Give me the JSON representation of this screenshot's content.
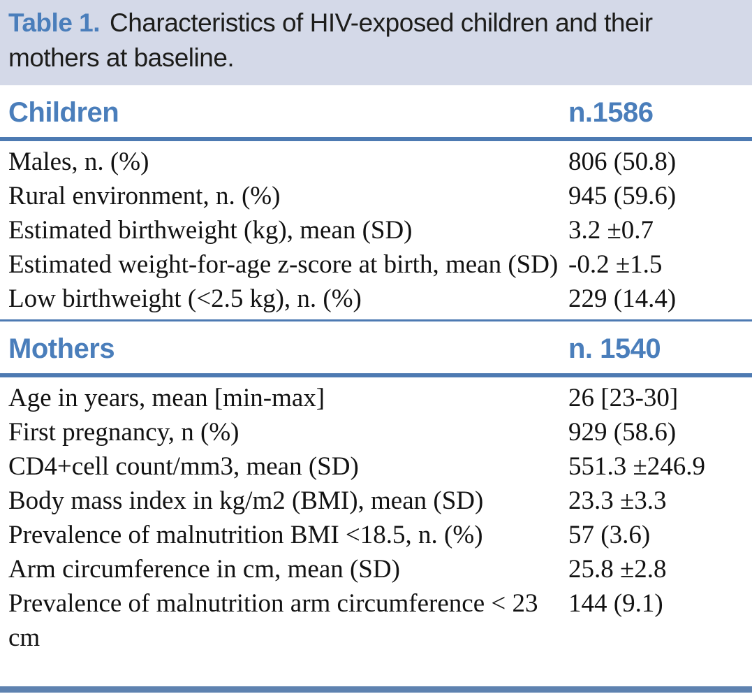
{
  "caption": {
    "label": "Table 1.",
    "text": "Characteristics of HIV-exposed children and their mothers at baseline."
  },
  "colors": {
    "caption_band_background": "#d4d9e8",
    "accent_blue": "#4a7ebb",
    "rule_blue": "#4d7ab2",
    "bottom_bar_blue": "#5e82b0",
    "body_text": "#121212"
  },
  "sections": [
    {
      "header": "Children",
      "count": "n.1586",
      "rows": [
        {
          "label": "Males, n. (%)",
          "value": "806 (50.8)"
        },
        {
          "label": "Rural environment, n. (%)",
          "value": "945 (59.6)"
        },
        {
          "label": "Estimated birthweight (kg), mean (SD)",
          "value": "3.2 ±0.7"
        },
        {
          "label": "Estimated weight-for-age z-score at birth, mean (SD)",
          "value": "-0.2 ±1.5"
        },
        {
          "label": "Low birthweight (<2.5 kg), n. (%)",
          "value": "229 (14.4)"
        }
      ]
    },
    {
      "header": "Mothers",
      "count": "n. 1540",
      "rows": [
        {
          "label": "Age in years, mean [min-max]",
          "value": "26 [23-30]"
        },
        {
          "label": "First pregnancy, n (%)",
          "value": "929 (58.6)"
        },
        {
          "label": "CD4+cell count/mm3, mean (SD)",
          "value": "551.3 ±246.9"
        },
        {
          "label": "Body mass index in kg/m2 (BMI), mean (SD)",
          "value": "23.3 ±3.3"
        },
        {
          "label": "Prevalence of malnutrition BMI <18.5, n. (%)",
          "value": "57 (3.6)"
        },
        {
          "label": "Arm circumference in cm, mean (SD)",
          "value": "25.8 ±2.8"
        },
        {
          "label": "Prevalence of malnutrition arm circumference < 23 cm",
          "value": "144 (9.1)"
        }
      ]
    }
  ]
}
